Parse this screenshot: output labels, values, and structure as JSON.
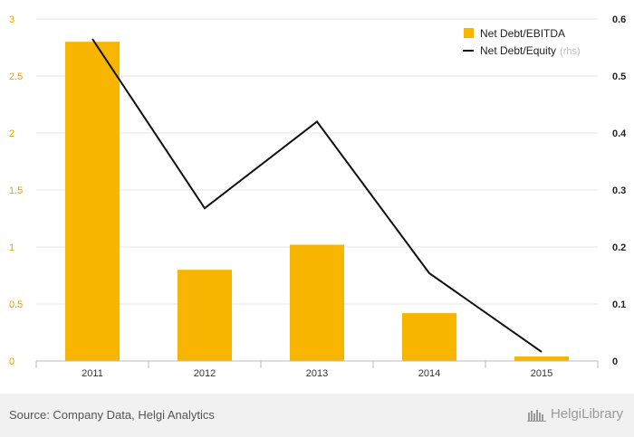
{
  "chart_data": {
    "type": "bar",
    "categories": [
      "2011",
      "2012",
      "2013",
      "2014",
      "2015"
    ],
    "series": [
      {
        "name": "Net Debt/EBITDA",
        "kind": "bar",
        "axis": "left",
        "values": [
          2.8,
          0.8,
          1.02,
          0.42,
          0.04
        ],
        "color": "#f7b500"
      },
      {
        "name": "Net Debt/Equity",
        "kind": "line",
        "axis": "right",
        "values": [
          0.565,
          0.268,
          0.42,
          0.154,
          0.016
        ],
        "color": "#111111"
      }
    ],
    "y_left": {
      "min": 0,
      "max": 3,
      "ticks": [
        "0",
        "0.5",
        "1",
        "1.5",
        "2",
        "2.5",
        "3"
      ],
      "tick_values": [
        0,
        0.5,
        1,
        1.5,
        2,
        2.5,
        3
      ]
    },
    "y_right": {
      "min": 0,
      "max": 0.6,
      "ticks": [
        "0",
        "0.1",
        "0.2",
        "0.3",
        "0.4",
        "0.5",
        "0.6"
      ],
      "tick_values": [
        0,
        0.1,
        0.2,
        0.3,
        0.4,
        0.5,
        0.6
      ]
    },
    "grid": true,
    "legend": {
      "position": "top-right",
      "items": [
        {
          "label": "Net Debt/EBITDA",
          "suffix": ""
        },
        {
          "label": "Net Debt/Equity",
          "suffix": "(rhs)"
        }
      ]
    }
  },
  "footer": {
    "source": "Source: Company Data, Helgi Analytics",
    "brand": "HelgiLibrary"
  },
  "colors": {
    "bar": "#f7b500",
    "line": "#111111",
    "grid": "#e6e6e6",
    "left_tick": "#e6a300"
  }
}
